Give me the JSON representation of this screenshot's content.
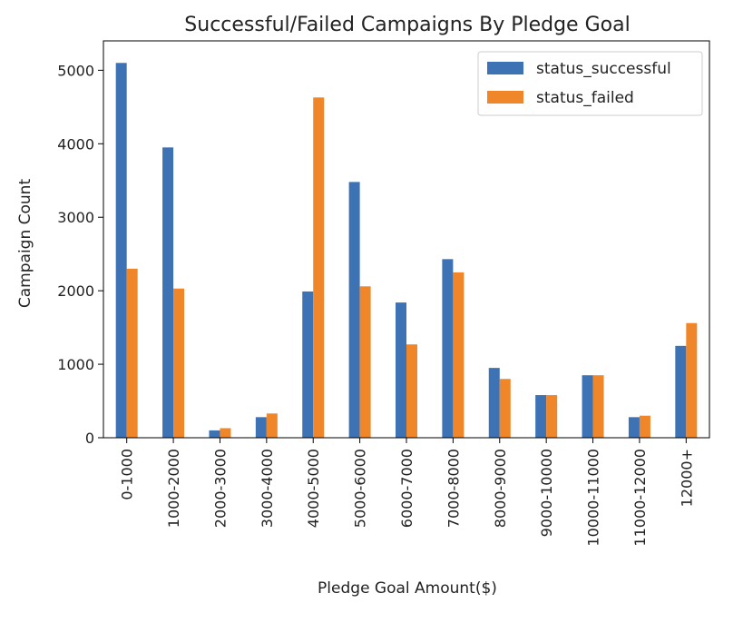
{
  "chart_data": {
    "type": "bar",
    "title": "Successful/Failed Campaigns By Pledge Goal",
    "xlabel": "Pledge Goal Amount($)",
    "ylabel": "Campaign Count",
    "categories": [
      "0-1000",
      "1000-2000",
      "2000-3000",
      "3000-4000",
      "4000-5000",
      "5000-6000",
      "6000-7000",
      "7000-8000",
      "8000-9000",
      "9000-10000",
      "10000-11000",
      "11000-12000",
      "12000+"
    ],
    "series": [
      {
        "name": "status_successful",
        "color": "#3d72b4",
        "values": [
          5100,
          3950,
          100,
          280,
          1990,
          3480,
          1840,
          2430,
          950,
          580,
          850,
          280,
          1250
        ]
      },
      {
        "name": "status_failed",
        "color": "#f0862a",
        "values": [
          2300,
          2030,
          130,
          330,
          4630,
          2060,
          1270,
          2250,
          800,
          580,
          850,
          300,
          1560
        ]
      }
    ],
    "ylim": [
      0,
      5400
    ],
    "yticks": [
      0,
      1000,
      2000,
      3000,
      4000,
      5000
    ],
    "legend": "top-right",
    "grid": false
  }
}
